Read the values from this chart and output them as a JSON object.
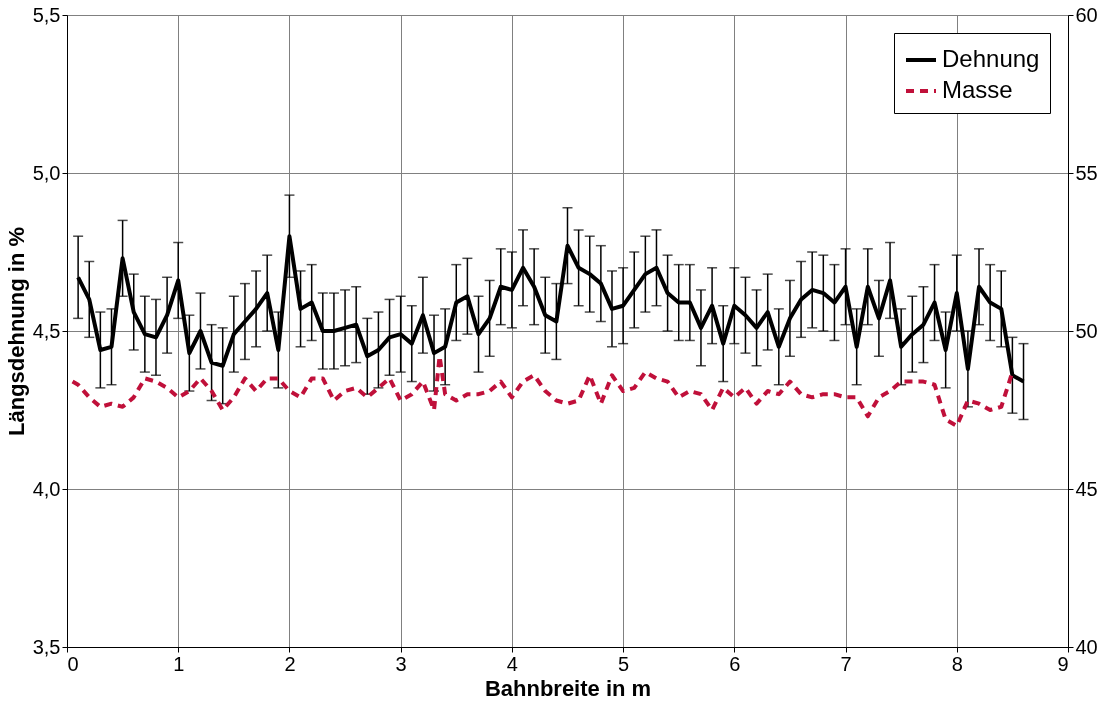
{
  "chart_data": {
    "type": "line",
    "xlabel": "Bahnbreite in m",
    "ylabel": "Längsdehnung in %",
    "xlim": [
      0,
      9
    ],
    "xticks": [
      0,
      1,
      2,
      3,
      4,
      5,
      6,
      7,
      8,
      9
    ],
    "ylim": [
      3.5,
      5.5
    ],
    "yticks": [
      {
        "value": 3.5,
        "label": "3,5"
      },
      {
        "value": 4.0,
        "label": "4,0"
      },
      {
        "value": 4.5,
        "label": "4,5"
      },
      {
        "value": 5.0,
        "label": "5,0"
      },
      {
        "value": 5.5,
        "label": "5,5"
      }
    ],
    "y2lim": [
      40,
      60
    ],
    "y2ticks": [
      40,
      45,
      50,
      55,
      60
    ],
    "grid": true,
    "legend": "top right",
    "marker": "none",
    "series": [
      {
        "name": "Dehnung",
        "color": "#000000",
        "line_style": "solid",
        "x": [
          0.1,
          0.2,
          0.3,
          0.4,
          0.5,
          0.6,
          0.7,
          0.8,
          0.9,
          1.0,
          1.1,
          1.2,
          1.3,
          1.4,
          1.5,
          1.6,
          1.7,
          1.8,
          1.9,
          2.0,
          2.1,
          2.2,
          2.3,
          2.4,
          2.5,
          2.6,
          2.7,
          2.8,
          2.9,
          3.0,
          3.1,
          3.2,
          3.3,
          3.4,
          3.5,
          3.6,
          3.7,
          3.8,
          3.9,
          4.0,
          4.1,
          4.2,
          4.3,
          4.4,
          4.5,
          4.6,
          4.7,
          4.8,
          4.9,
          5.0,
          5.1,
          5.2,
          5.3,
          5.4,
          5.5,
          5.6,
          5.7,
          5.8,
          5.9,
          6.0,
          6.1,
          6.2,
          6.3,
          6.4,
          6.5,
          6.6,
          6.7,
          6.8,
          6.9,
          7.0,
          7.1,
          7.2,
          7.3,
          7.4,
          7.5,
          7.6,
          7.7,
          7.8,
          7.9,
          8.0,
          8.1,
          8.2,
          8.3,
          8.4,
          8.5,
          8.6
        ],
        "values": [
          4.67,
          4.6,
          4.44,
          4.45,
          4.73,
          4.56,
          4.49,
          4.48,
          4.55,
          4.66,
          4.43,
          4.5,
          4.4,
          4.39,
          4.49,
          4.53,
          4.57,
          4.62,
          4.44,
          4.8,
          4.57,
          4.59,
          4.5,
          4.5,
          4.51,
          4.52,
          4.42,
          4.44,
          4.48,
          4.49,
          4.46,
          4.55,
          4.43,
          4.45,
          4.59,
          4.61,
          4.49,
          4.54,
          4.64,
          4.63,
          4.7,
          4.64,
          4.55,
          4.53,
          4.77,
          4.7,
          4.68,
          4.65,
          4.57,
          4.58,
          4.63,
          4.68,
          4.7,
          4.62,
          4.59,
          4.59,
          4.51,
          4.58,
          4.46,
          4.58,
          4.55,
          4.51,
          4.56,
          4.45,
          4.54,
          4.6,
          4.63,
          4.62,
          4.59,
          4.64,
          4.45,
          4.64,
          4.54,
          4.66,
          4.45,
          4.49,
          4.52,
          4.59,
          4.44,
          4.62,
          4.38,
          4.64,
          4.59,
          4.57,
          4.36,
          4.34
        ],
        "errors": [
          0.13,
          0.12,
          0.12,
          0.12,
          0.12,
          0.12,
          0.12,
          0.12,
          0.12,
          0.12,
          0.12,
          0.12,
          0.12,
          0.12,
          0.12,
          0.12,
          0.12,
          0.12,
          0.12,
          0.13,
          0.12,
          0.12,
          0.12,
          0.12,
          0.12,
          0.12,
          0.12,
          0.12,
          0.12,
          0.12,
          0.12,
          0.12,
          0.12,
          0.12,
          0.12,
          0.12,
          0.12,
          0.12,
          0.12,
          0.12,
          0.12,
          0.12,
          0.12,
          0.12,
          0.12,
          0.12,
          0.12,
          0.12,
          0.12,
          0.12,
          0.12,
          0.12,
          0.12,
          0.12,
          0.12,
          0.12,
          0.12,
          0.12,
          0.12,
          0.12,
          0.12,
          0.12,
          0.12,
          0.12,
          0.12,
          0.12,
          0.12,
          0.12,
          0.12,
          0.12,
          0.12,
          0.12,
          0.12,
          0.12,
          0.12,
          0.12,
          0.12,
          0.12,
          0.12,
          0.12,
          0.12,
          0.12,
          0.12,
          0.12,
          0.12,
          0.12
        ]
      },
      {
        "name": "Masse",
        "color": "#c0103a",
        "line_style": "dashed",
        "axis": "y2",
        "x": [
          0.05,
          0.1,
          0.2,
          0.3,
          0.4,
          0.5,
          0.6,
          0.7,
          0.8,
          0.9,
          1.0,
          1.1,
          1.2,
          1.3,
          1.4,
          1.5,
          1.6,
          1.7,
          1.8,
          1.9,
          2.0,
          2.1,
          2.2,
          2.3,
          2.4,
          2.5,
          2.6,
          2.7,
          2.8,
          2.9,
          3.0,
          3.1,
          3.2,
          3.3,
          3.35,
          3.4,
          3.5,
          3.6,
          3.7,
          3.8,
          3.9,
          4.0,
          4.1,
          4.2,
          4.3,
          4.4,
          4.5,
          4.6,
          4.7,
          4.8,
          4.9,
          5.0,
          5.1,
          5.2,
          5.3,
          5.4,
          5.5,
          5.6,
          5.7,
          5.8,
          5.9,
          6.0,
          6.1,
          6.2,
          6.3,
          6.4,
          6.5,
          6.6,
          6.7,
          6.8,
          6.9,
          7.0,
          7.1,
          7.2,
          7.3,
          7.4,
          7.5,
          7.6,
          7.7,
          7.8,
          7.9,
          8.0,
          8.1,
          8.2,
          8.3,
          8.4,
          8.5
        ],
        "values": [
          48.4,
          48.3,
          47.9,
          47.6,
          47.7,
          47.6,
          47.9,
          48.5,
          48.4,
          48.2,
          47.9,
          48.1,
          48.5,
          48.1,
          47.5,
          47.9,
          48.5,
          48.1,
          48.5,
          48.5,
          48.1,
          47.9,
          48.5,
          48.5,
          47.8,
          48.1,
          48.2,
          47.9,
          48.2,
          48.5,
          47.8,
          48.0,
          48.4,
          47.5,
          49.2,
          48.0,
          47.8,
          48.0,
          48.0,
          48.1,
          48.4,
          47.9,
          48.4,
          48.6,
          48.1,
          47.8,
          47.7,
          47.8,
          48.6,
          47.7,
          48.6,
          48.1,
          48.2,
          48.7,
          48.5,
          48.4,
          47.9,
          48.1,
          48.0,
          47.5,
          48.2,
          47.9,
          48.2,
          47.7,
          48.1,
          48.0,
          48.4,
          48.0,
          47.9,
          48.0,
          48.0,
          47.9,
          47.9,
          47.3,
          47.9,
          48.1,
          48.4,
          48.4,
          48.4,
          48.3,
          47.2,
          47.0,
          47.8,
          47.7,
          47.5,
          47.6,
          48.7
        ]
      }
    ]
  }
}
